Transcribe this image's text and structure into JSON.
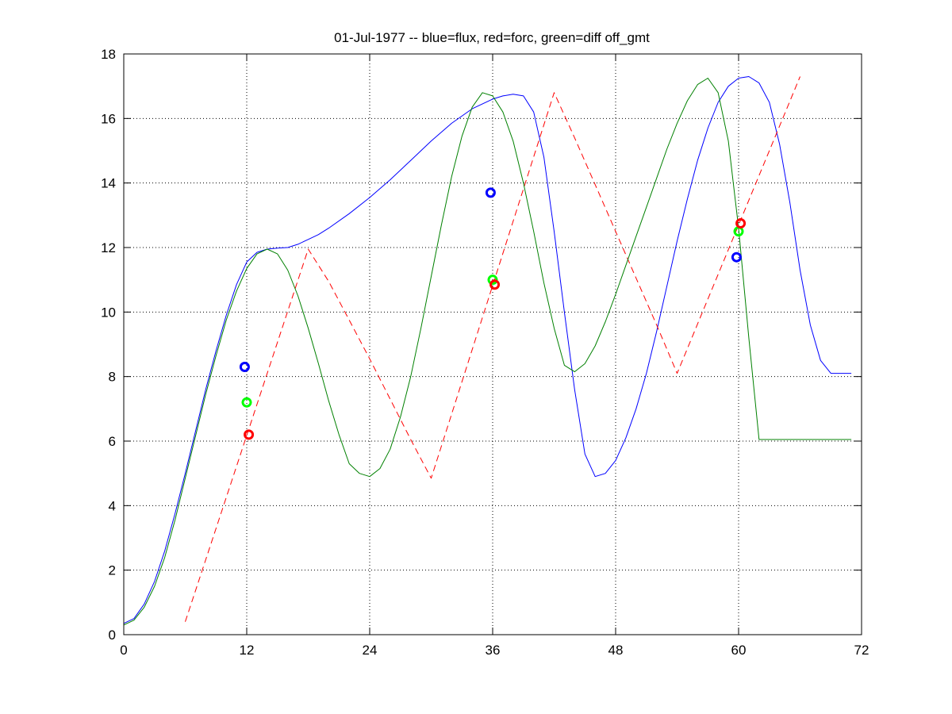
{
  "chart_data": {
    "type": "line",
    "title": "01-Jul-1977 -- blue=flux, red=forc, green=diff off_gmt",
    "xlabel": "",
    "ylabel": "",
    "xlim": [
      0,
      72
    ],
    "ylim": [
      0,
      18
    ],
    "x_ticks": [
      0,
      12,
      24,
      36,
      48,
      60,
      72
    ],
    "y_ticks": [
      0,
      2,
      4,
      6,
      8,
      10,
      12,
      14,
      16,
      18
    ],
    "x_tick_labels": [
      "0",
      "12",
      "24",
      "36",
      "48",
      "60",
      "72"
    ],
    "y_tick_labels": [
      "0",
      "2",
      "4",
      "6",
      "8",
      "10",
      "12",
      "14",
      "16",
      "18"
    ],
    "grid": true,
    "grid_style": "dotted",
    "legend": "none",
    "series": [
      {
        "color": "#0000ff",
        "style": "solid",
        "x": [
          0,
          1,
          2,
          3,
          4,
          5,
          6,
          7,
          8,
          9,
          10,
          11,
          12,
          13,
          14,
          15,
          16,
          17,
          18,
          19,
          20,
          22,
          24,
          26,
          28,
          30,
          32,
          34,
          36,
          37,
          38,
          39,
          40,
          41,
          42,
          43,
          44,
          45,
          46,
          47,
          48,
          49,
          50,
          51,
          52,
          53,
          54,
          55,
          56,
          57,
          58,
          59,
          60,
          61,
          62,
          63,
          64,
          65,
          66,
          67,
          68,
          69,
          70,
          71
        ],
        "y": [
          0.35,
          0.5,
          0.95,
          1.65,
          2.6,
          3.75,
          5.0,
          6.3,
          7.6,
          8.8,
          9.9,
          10.85,
          11.55,
          11.85,
          11.95,
          11.98,
          12.0,
          12.1,
          12.25,
          12.4,
          12.6,
          13.05,
          13.55,
          14.1,
          14.7,
          15.3,
          15.85,
          16.3,
          16.6,
          16.7,
          16.75,
          16.7,
          16.2,
          14.8,
          12.5,
          10.0,
          7.6,
          5.6,
          4.9,
          5.0,
          5.4,
          6.1,
          7.0,
          8.1,
          9.4,
          10.8,
          12.2,
          13.5,
          14.7,
          15.7,
          16.5,
          17.0,
          17.25,
          17.3,
          17.1,
          16.5,
          15.2,
          13.4,
          11.3,
          9.6,
          8.5,
          8.1,
          8.1,
          8.1
        ]
      },
      {
        "color": "#ff0000",
        "style": "dashed",
        "x": [
          6,
          18,
          20,
          22,
          24,
          26,
          28,
          30,
          42,
          44,
          46,
          48,
          50,
          52,
          54,
          66
        ],
        "y": [
          0.4,
          11.95,
          10.95,
          9.75,
          8.55,
          7.3,
          6.05,
          4.85,
          16.8,
          15.4,
          13.95,
          12.5,
          11.05,
          9.6,
          8.1,
          17.3
        ]
      },
      {
        "color": "#008000",
        "style": "solid",
        "x": [
          0,
          1,
          2,
          3,
          4,
          5,
          6,
          7,
          8,
          9,
          10,
          11,
          12,
          13,
          14,
          15,
          16,
          17,
          18,
          19,
          20,
          21,
          22,
          23,
          24,
          25,
          26,
          27,
          28,
          29,
          30,
          31,
          32,
          33,
          34,
          35,
          36,
          37,
          38,
          39,
          40,
          41,
          42,
          43,
          44,
          45,
          46,
          47,
          48,
          49,
          50,
          51,
          52,
          53,
          54,
          55,
          56,
          57,
          58,
          59,
          60,
          61,
          62,
          63,
          64,
          65,
          66,
          67,
          68,
          69,
          70,
          71
        ],
        "y": [
          0.3,
          0.45,
          0.85,
          1.5,
          2.4,
          3.55,
          4.85,
          6.15,
          7.45,
          8.65,
          9.75,
          10.65,
          11.35,
          11.8,
          11.95,
          11.8,
          11.3,
          10.5,
          9.5,
          8.4,
          7.25,
          6.2,
          5.3,
          5.0,
          4.9,
          5.15,
          5.75,
          6.75,
          8.0,
          9.5,
          11.1,
          12.7,
          14.2,
          15.45,
          16.35,
          16.8,
          16.7,
          16.2,
          15.3,
          14.0,
          12.5,
          10.9,
          9.5,
          8.35,
          8.15,
          8.4,
          8.95,
          9.7,
          10.55,
          11.45,
          12.35,
          13.25,
          14.15,
          15.05,
          15.85,
          16.55,
          17.05,
          17.25,
          16.8,
          15.3,
          12.6,
          9.2,
          6.05,
          6.05,
          6.05,
          6.05,
          6.05,
          6.05,
          6.05,
          6.05,
          6.05,
          6.05
        ]
      }
    ],
    "markers": [
      {
        "color": "#0000ff",
        "shape": "circle",
        "x": 11.8,
        "y": 8.3
      },
      {
        "color": "#00ff00",
        "shape": "circle",
        "x": 12.0,
        "y": 7.2
      },
      {
        "color": "#ff0000",
        "shape": "circle",
        "x": 12.2,
        "y": 6.2
      },
      {
        "color": "#0000ff",
        "shape": "circle",
        "x": 35.8,
        "y": 13.7
      },
      {
        "color": "#00ff00",
        "shape": "circle",
        "x": 36.0,
        "y": 11.0
      },
      {
        "color": "#ff0000",
        "shape": "circle",
        "x": 36.2,
        "y": 10.85
      },
      {
        "color": "#0000ff",
        "shape": "circle",
        "x": 59.8,
        "y": 11.7
      },
      {
        "color": "#00ff00",
        "shape": "circle",
        "x": 60.0,
        "y": 12.5
      },
      {
        "color": "#ff0000",
        "shape": "circle",
        "x": 60.2,
        "y": 12.75
      }
    ]
  }
}
